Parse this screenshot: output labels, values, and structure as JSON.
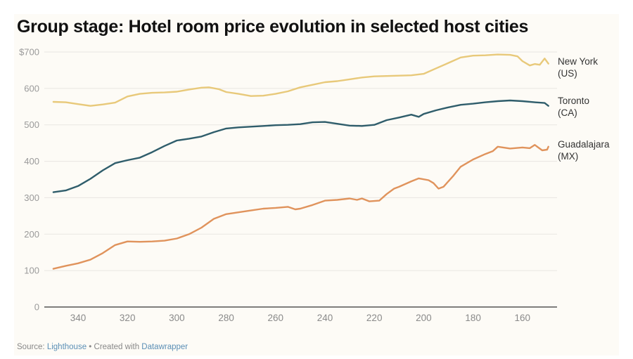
{
  "chart_data": {
    "type": "line",
    "title": "Group stage: Hotel room price evolution in selected host cities",
    "xlabel": "",
    "ylabel": "",
    "xlim": [
      350,
      149.5
    ],
    "ylim": [
      0,
      700
    ],
    "x_reversed": true,
    "grid": true,
    "y_ticks": [
      {
        "value": 700,
        "label": "$700"
      },
      {
        "value": 600,
        "label": "600"
      },
      {
        "value": 500,
        "label": "500"
      },
      {
        "value": 400,
        "label": "400"
      },
      {
        "value": 300,
        "label": "300"
      },
      {
        "value": 200,
        "label": "200"
      },
      {
        "value": 100,
        "label": "100"
      },
      {
        "value": 0,
        "label": "0"
      }
    ],
    "x_ticks": [
      {
        "value": 340,
        "label": "340"
      },
      {
        "value": 320,
        "label": "320"
      },
      {
        "value": 300,
        "label": "300"
      },
      {
        "value": 280,
        "label": "280"
      },
      {
        "value": 260,
        "label": "260"
      },
      {
        "value": 240,
        "label": "240"
      },
      {
        "value": 220,
        "label": "220"
      },
      {
        "value": 200,
        "label": "200"
      },
      {
        "value": 180,
        "label": "180"
      },
      {
        "value": 160,
        "label": "160"
      }
    ],
    "legend_placement": "right, direct labels at line ends",
    "series": [
      {
        "name": "New York (US)",
        "label_lines": [
          "New York",
          "(US)"
        ],
        "color": "#e8c97a",
        "x": [
          350,
          345,
          340,
          335,
          330,
          325,
          320,
          315,
          310,
          305,
          300,
          295,
          290,
          287,
          283,
          280,
          275,
          270,
          265,
          260,
          255,
          250,
          245,
          240,
          235,
          230,
          225,
          220,
          215,
          210,
          205,
          200,
          195,
          190,
          185,
          180,
          175,
          170,
          165,
          162,
          160,
          157,
          155,
          153,
          151,
          149.5
        ],
        "y": [
          563,
          562,
          557,
          552,
          556,
          561,
          578,
          585,
          588,
          589,
          591,
          597,
          602,
          603,
          598,
          590,
          585,
          579,
          580,
          585,
          592,
          603,
          610,
          617,
          620,
          625,
          630,
          633,
          634,
          635,
          636,
          640,
          655,
          670,
          685,
          690,
          691,
          693,
          692,
          688,
          675,
          663,
          667,
          665,
          682,
          668
        ]
      },
      {
        "name": "Toronto (CA)",
        "label_lines": [
          "Toronto",
          "(CA)"
        ],
        "color": "#2f5d6b",
        "x": [
          350,
          345,
          340,
          335,
          330,
          325,
          320,
          315,
          310,
          305,
          300,
          295,
          290,
          285,
          280,
          275,
          270,
          265,
          260,
          255,
          250,
          245,
          240,
          235,
          230,
          225,
          220,
          215,
          210,
          205,
          202,
          200,
          195,
          190,
          185,
          180,
          175,
          170,
          165,
          160,
          155,
          151,
          149.5
        ],
        "y": [
          315,
          320,
          332,
          352,
          375,
          395,
          403,
          410,
          425,
          442,
          457,
          462,
          468,
          480,
          490,
          493,
          495,
          497,
          499,
          500,
          502,
          507,
          508,
          503,
          498,
          497,
          500,
          513,
          520,
          528,
          522,
          530,
          540,
          548,
          555,
          558,
          562,
          565,
          567,
          565,
          562,
          560,
          552
        ]
      },
      {
        "name": "Guadalajara (MX)",
        "label_lines": [
          "Guadalajara",
          "(MX)"
        ],
        "color": "#e0935c",
        "x": [
          350,
          345,
          340,
          335,
          330,
          325,
          320,
          315,
          310,
          305,
          300,
          295,
          290,
          285,
          280,
          275,
          270,
          265,
          260,
          255,
          252,
          250,
          245,
          240,
          235,
          230,
          227,
          225,
          222,
          218,
          215,
          212,
          210,
          205,
          202,
          198,
          196,
          194,
          192,
          188,
          185,
          180,
          175,
          172,
          170,
          165,
          160,
          157,
          155,
          152,
          150,
          149.5
        ],
        "y": [
          105,
          113,
          120,
          130,
          148,
          170,
          180,
          179,
          180,
          182,
          188,
          200,
          218,
          242,
          255,
          260,
          265,
          270,
          272,
          275,
          268,
          270,
          280,
          292,
          294,
          298,
          294,
          298,
          290,
          292,
          310,
          325,
          330,
          345,
          353,
          348,
          340,
          325,
          330,
          360,
          385,
          405,
          420,
          428,
          440,
          435,
          438,
          436,
          445,
          430,
          432,
          440
        ]
      }
    ]
  },
  "footer": {
    "source_prefix": "Source: ",
    "source_name": "Lighthouse",
    "separator": " • Created with ",
    "tool_name": "Datawrapper"
  }
}
